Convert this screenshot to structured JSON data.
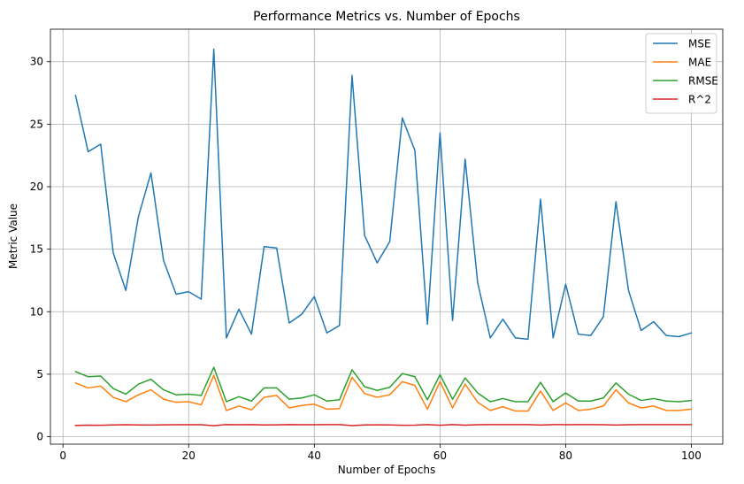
{
  "chart_data": {
    "type": "line",
    "title": "Performance Metrics vs. Number of Epochs",
    "xlabel": "Number of Epochs",
    "ylabel": "Metric Value",
    "xlim": [
      -2,
      105
    ],
    "ylim": [
      -0.6,
      32.6
    ],
    "xticks": [
      0,
      20,
      40,
      60,
      80,
      100
    ],
    "yticks": [
      0,
      5,
      10,
      15,
      20,
      25,
      30
    ],
    "grid": true,
    "legend_position": "upper right",
    "x": [
      2,
      4,
      6,
      8,
      10,
      12,
      14,
      16,
      18,
      20,
      22,
      24,
      26,
      28,
      30,
      32,
      34,
      36,
      38,
      40,
      42,
      44,
      46,
      48,
      50,
      52,
      54,
      56,
      58,
      60,
      62,
      64,
      66,
      68,
      70,
      72,
      74,
      76,
      78,
      80,
      82,
      84,
      86,
      88,
      90,
      92,
      94,
      96,
      98,
      100
    ],
    "series": [
      {
        "name": "MSE",
        "color": "#1f77b4",
        "values": [
          27.3,
          22.8,
          23.4,
          14.7,
          11.7,
          17.6,
          21.1,
          14.1,
          11.4,
          11.6,
          11.0,
          31.0,
          7.9,
          10.2,
          8.2,
          15.2,
          15.1,
          9.1,
          9.8,
          11.2,
          8.3,
          8.9,
          28.9,
          16.1,
          13.9,
          15.6,
          25.5,
          22.9,
          9.0,
          24.3,
          9.3,
          22.2,
          12.3,
          7.9,
          9.4,
          7.9,
          7.8,
          19.0,
          7.9,
          12.2,
          8.2,
          8.1,
          9.6,
          18.8,
          11.7,
          8.5,
          9.2,
          8.1,
          8.0,
          8.3
        ]
      },
      {
        "name": "MAE",
        "color": "#ff7f0e",
        "values": [
          4.3,
          3.9,
          4.05,
          3.15,
          2.8,
          3.35,
          3.75,
          3.0,
          2.75,
          2.8,
          2.55,
          4.9,
          2.1,
          2.45,
          2.15,
          3.15,
          3.3,
          2.3,
          2.5,
          2.6,
          2.2,
          2.25,
          4.75,
          3.45,
          3.15,
          3.35,
          4.4,
          4.1,
          2.2,
          4.4,
          2.3,
          4.2,
          2.75,
          2.1,
          2.4,
          2.05,
          2.05,
          3.65,
          2.1,
          2.7,
          2.1,
          2.2,
          2.45,
          3.75,
          2.7,
          2.3,
          2.45,
          2.1,
          2.1,
          2.2
        ]
      },
      {
        "name": "RMSE",
        "color": "#2ca02c",
        "values": [
          5.2,
          4.8,
          4.85,
          3.85,
          3.4,
          4.2,
          4.6,
          3.75,
          3.35,
          3.4,
          3.3,
          5.55,
          2.8,
          3.2,
          2.85,
          3.9,
          3.9,
          3.0,
          3.1,
          3.35,
          2.85,
          2.95,
          5.35,
          4.0,
          3.7,
          3.95,
          5.05,
          4.8,
          2.95,
          4.95,
          3.0,
          4.7,
          3.5,
          2.8,
          3.05,
          2.8,
          2.8,
          4.35,
          2.8,
          3.5,
          2.85,
          2.85,
          3.1,
          4.3,
          3.4,
          2.9,
          3.05,
          2.85,
          2.8,
          2.9
        ]
      },
      {
        "name": "R^2",
        "color": "#d62728",
        "values": [
          0.9,
          0.92,
          0.91,
          0.94,
          0.96,
          0.94,
          0.93,
          0.95,
          0.96,
          0.96,
          0.96,
          0.88,
          0.97,
          0.96,
          0.97,
          0.94,
          0.95,
          0.97,
          0.96,
          0.96,
          0.97,
          0.97,
          0.89,
          0.94,
          0.95,
          0.94,
          0.91,
          0.92,
          0.97,
          0.91,
          0.97,
          0.92,
          0.96,
          0.97,
          0.97,
          0.97,
          0.97,
          0.93,
          0.97,
          0.96,
          0.97,
          0.97,
          0.96,
          0.93,
          0.96,
          0.97,
          0.97,
          0.97,
          0.97,
          0.97
        ]
      }
    ]
  }
}
